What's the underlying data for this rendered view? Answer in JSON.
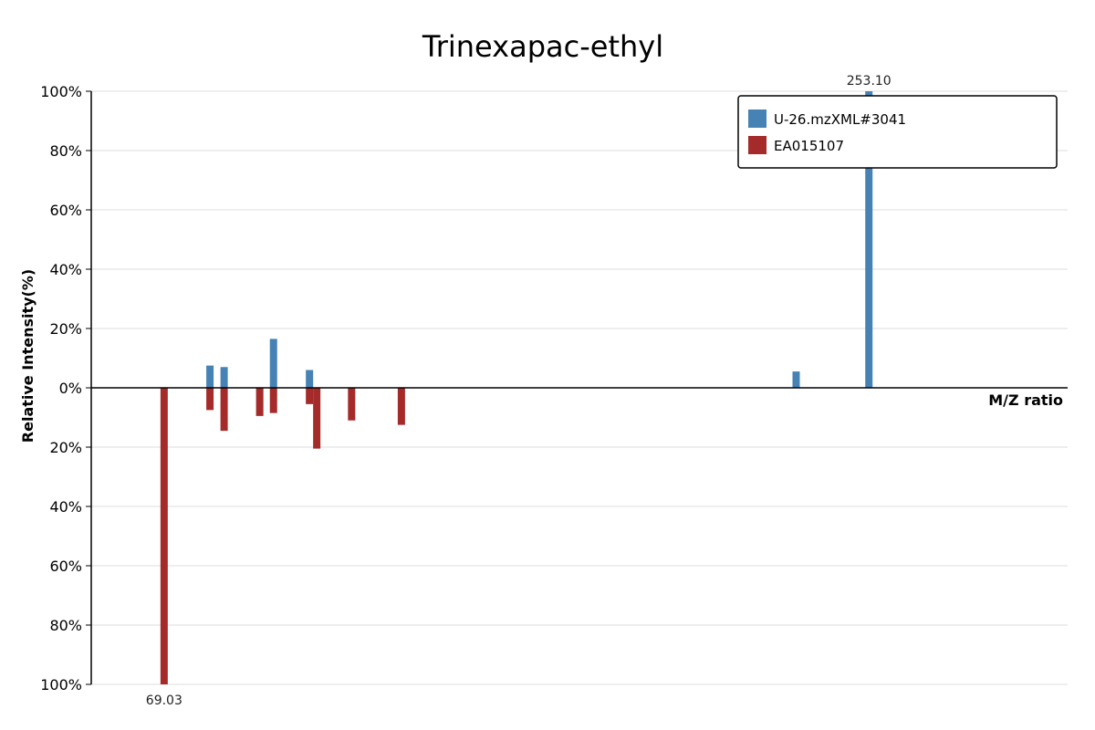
{
  "chart_data": {
    "type": "bar",
    "title": "Trinexapac-ethyl",
    "xlabel": "M/Z ratio",
    "ylabel": "Relative Intensity(%)",
    "ylim": [
      -100,
      100
    ],
    "yticks": [
      {
        "value": 100,
        "label": "100%"
      },
      {
        "value": 80,
        "label": "80%"
      },
      {
        "value": 60,
        "label": "60%"
      },
      {
        "value": 40,
        "label": "40%"
      },
      {
        "value": 20,
        "label": "20%"
      },
      {
        "value": 0,
        "label": "0%"
      },
      {
        "value": -20,
        "label": "20%"
      },
      {
        "value": -40,
        "label": "40%"
      },
      {
        "value": -60,
        "label": "60%"
      },
      {
        "value": -80,
        "label": "80%"
      },
      {
        "value": -100,
        "label": "100%"
      }
    ],
    "xlim": [
      50,
      305
    ],
    "grid": true,
    "legend_position": "top-right",
    "series": [
      {
        "name": "U-26.mzXML#3041",
        "color": "#4682b4",
        "direction": "up",
        "peaks": [
          {
            "mz": 81.0,
            "intensity": 7.5
          },
          {
            "mz": 84.7,
            "intensity": 7.0
          },
          {
            "mz": 97.6,
            "intensity": 16.5
          },
          {
            "mz": 107.0,
            "intensity": 6.0
          },
          {
            "mz": 234.1,
            "intensity": 5.5
          },
          {
            "mz": 253.1,
            "intensity": 100,
            "label": "253.10"
          }
        ]
      },
      {
        "name": "EA015107",
        "color": "#a52a2a",
        "direction": "down",
        "peaks": [
          {
            "mz": 69.03,
            "intensity": 100,
            "label": "69.03"
          },
          {
            "mz": 81.0,
            "intensity": 7.5
          },
          {
            "mz": 84.7,
            "intensity": 14.5
          },
          {
            "mz": 94.0,
            "intensity": 9.5
          },
          {
            "mz": 97.6,
            "intensity": 8.5
          },
          {
            "mz": 107.0,
            "intensity": 5.5
          },
          {
            "mz": 108.9,
            "intensity": 20.5
          },
          {
            "mz": 118.0,
            "intensity": 11.0
          },
          {
            "mz": 131.0,
            "intensity": 12.5
          }
        ]
      }
    ]
  }
}
